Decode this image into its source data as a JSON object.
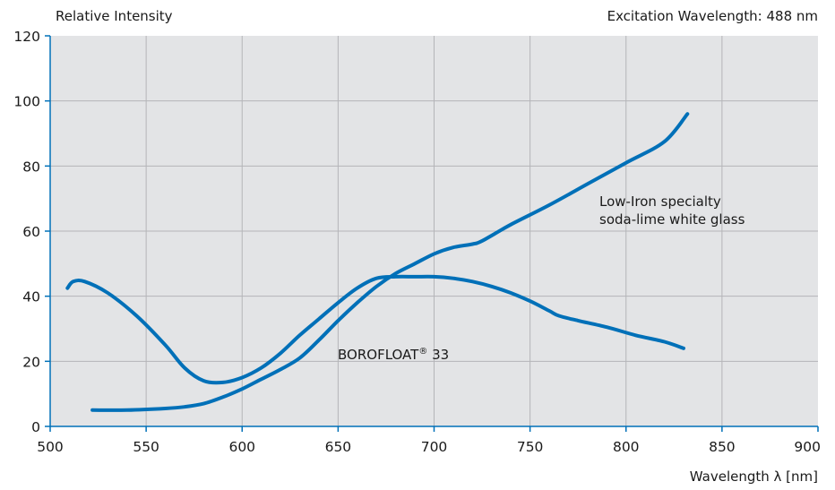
{
  "chart_data": {
    "type": "line",
    "ylabel": "Relative Intensity",
    "xlabel": "Wavelength λ [nm]",
    "annotation_top_right": "Excitation Wavelength: 488 nm",
    "xlim": [
      500,
      900
    ],
    "ylim": [
      0,
      120
    ],
    "xticks": [
      "500",
      "550",
      "600",
      "650",
      "700",
      "750",
      "800",
      "850",
      "900"
    ],
    "yticks": [
      "0",
      "20",
      "40",
      "60",
      "80",
      "100",
      "120"
    ],
    "grid": true,
    "colors": {
      "plot_background": "#e3e4e6",
      "line": "#0070b8",
      "grid": "#b4b5b8"
    },
    "series": [
      {
        "name": "BOROFLOAT® 33",
        "label": {
          "main": "BOROFLOAT",
          "sup": "®",
          "suffix": " 33"
        },
        "x": [
          509,
          512,
          518,
          530,
          545,
          560,
          570,
          580,
          590,
          600,
          610,
          620,
          630,
          640,
          650,
          660,
          670,
          680,
          690,
          700,
          710,
          720,
          730,
          740,
          750,
          760,
          765,
          775,
          790,
          805,
          820,
          830
        ],
        "y": [
          42.5,
          44.5,
          44.5,
          41,
          34,
          25,
          18,
          14,
          13.5,
          15,
          18,
          22.5,
          28,
          33,
          38,
          42.5,
          45.5,
          46,
          46,
          46,
          45.5,
          44.5,
          43,
          41,
          38.5,
          35.5,
          34,
          32.5,
          30.5,
          28,
          26,
          24
        ]
      },
      {
        "name": "Low-Iron specialty soda-lime white glass",
        "label_lines": [
          "Low-Iron specialty",
          "soda-lime white glass"
        ],
        "x": [
          522,
          540,
          560,
          570,
          580,
          590,
          600,
          610,
          620,
          630,
          640,
          650,
          660,
          670,
          680,
          690,
          700,
          710,
          720,
          725,
          740,
          760,
          780,
          800,
          820,
          832
        ],
        "y": [
          5,
          5,
          5.5,
          6,
          7,
          9,
          11.5,
          14.5,
          17.5,
          21,
          26.5,
          32.5,
          38,
          43,
          47,
          50,
          53,
          55,
          56,
          57,
          62,
          68,
          74.5,
          81,
          87.5,
          96
        ]
      }
    ]
  }
}
